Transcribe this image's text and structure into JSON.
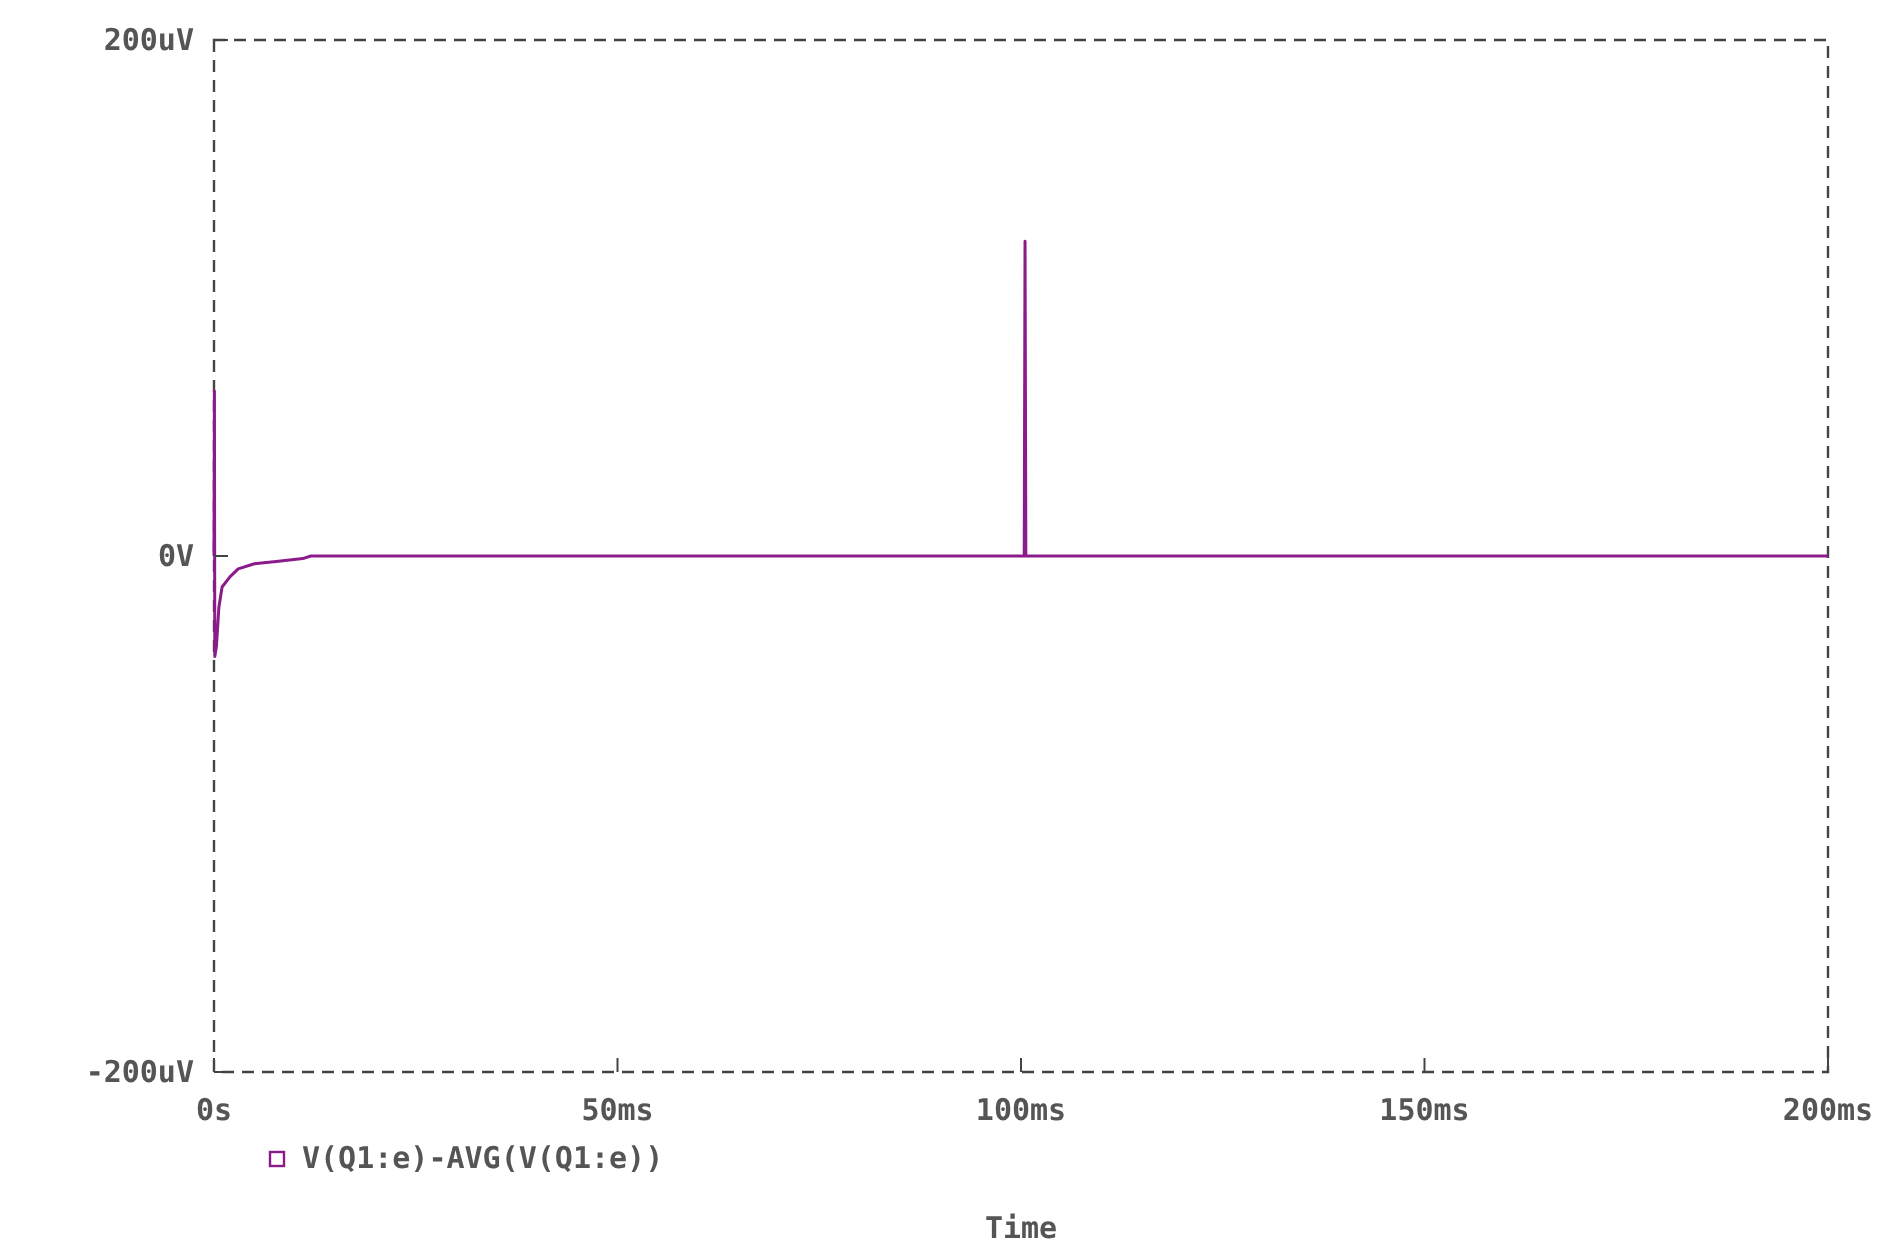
{
  "chart_data": {
    "type": "line",
    "xlabel": "Time",
    "legend": "bottom left",
    "line_style": "solid",
    "grid": false,
    "xlim": [
      0,
      200
    ],
    "xticks": [
      {
        "value": 0,
        "label": "0s"
      },
      {
        "value": 50,
        "label": "50ms"
      },
      {
        "value": 100,
        "label": "100ms"
      },
      {
        "value": 150,
        "label": "150ms"
      },
      {
        "value": 200,
        "label": "200ms"
      }
    ],
    "ylim": [
      -200,
      200
    ],
    "yticks": [
      {
        "value": -200,
        "label": "-200uV"
      },
      {
        "value": 0,
        "label": "0V"
      },
      {
        "value": 200,
        "label": "200uV"
      }
    ],
    "series": [
      {
        "name": "V(Q1:e)-AVG(V(Q1:e))",
        "color": "#8b1a8b",
        "x": [
          0,
          0.05,
          0.1,
          0.3,
          0.6,
          1,
          2,
          3,
          5,
          8,
          11,
          12,
          100.4,
          100.5,
          100.6,
          200
        ],
        "values": [
          0,
          64,
          -39,
          -35,
          -20,
          -12,
          -8,
          -5,
          -3,
          -2,
          -1,
          0,
          0,
          122,
          0,
          0
        ]
      }
    ]
  }
}
